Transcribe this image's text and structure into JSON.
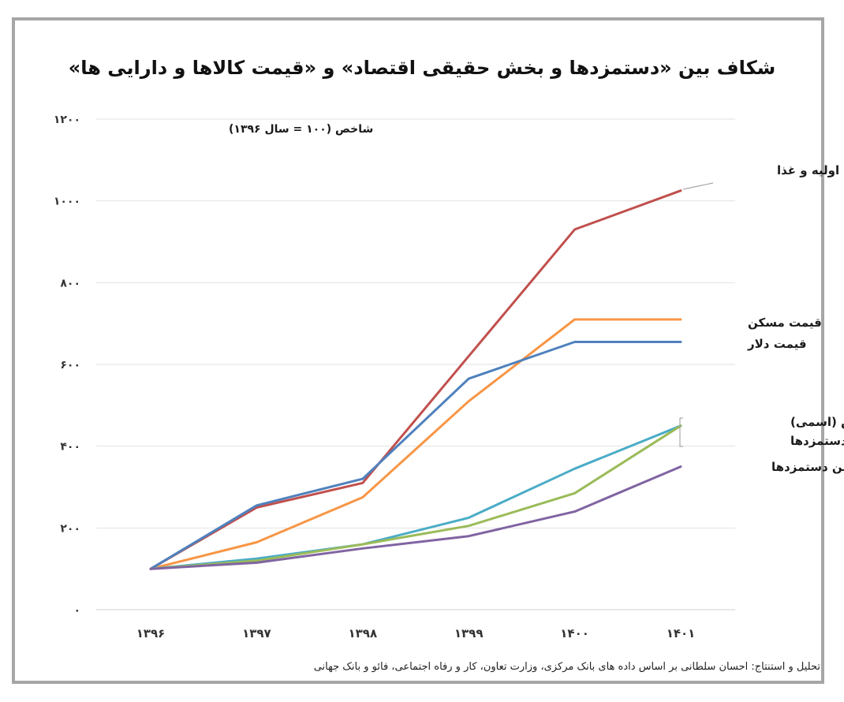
{
  "chart_data": {
    "type": "line",
    "title": "شکاف بین «دستمزدها و بخش حقیقی اقتصاد» و «قیمت کالاها و دارایی ها»",
    "ylabel": "شاخص (۱۰۰ = سال ۱۳۹۶)",
    "xlabel": "",
    "categories": [
      "۱۳۹۶",
      "۱۳۹۷",
      "۱۳۹۸",
      "۱۳۹۹",
      "۱۴۰۰",
      "۱۴۰۱"
    ],
    "y_ticks": [
      0,
      200,
      400,
      600,
      800,
      1000,
      1200
    ],
    "y_tick_labels": [
      "۰",
      "۲۰۰",
      "۴۰۰",
      "۶۰۰",
      "۸۰۰",
      "۱۰۰۰",
      "۱۲۰۰"
    ],
    "ylim": [
      0,
      1200
    ],
    "grid": true,
    "series": [
      {
        "name": "قیمت جهانی مواد اولیه و غذا",
        "color": "#c0504d",
        "values": [
          100,
          250,
          310,
          620,
          930,
          1025
        ]
      },
      {
        "name": "قیمت مسکن",
        "color": "#f79646",
        "values": [
          100,
          165,
          275,
          510,
          710,
          710
        ]
      },
      {
        "name": "قیمت دلار",
        "color": "#4f81bd",
        "values": [
          100,
          255,
          320,
          565,
          655,
          655
        ]
      },
      {
        "name": "تولید ناخالص (اسمی)",
        "color": "#4bacc6",
        "values": [
          100,
          125,
          160,
          225,
          345,
          450
        ]
      },
      {
        "name": "حداقل دستمزدها",
        "color": "#9bbb59",
        "values": [
          100,
          120,
          160,
          205,
          285,
          450
        ]
      },
      {
        "name": "میانگین دستمزدها",
        "color": "#8064a2",
        "values": [
          100,
          115,
          150,
          180,
          240,
          350
        ]
      }
    ]
  },
  "source": "تحلیل و استنتاج: احسان سلطانی بر اساس داده های بانک مرکزی، وزارت تعاون، کار و رفاه اجتماعی، فائو و بانک جهانی"
}
